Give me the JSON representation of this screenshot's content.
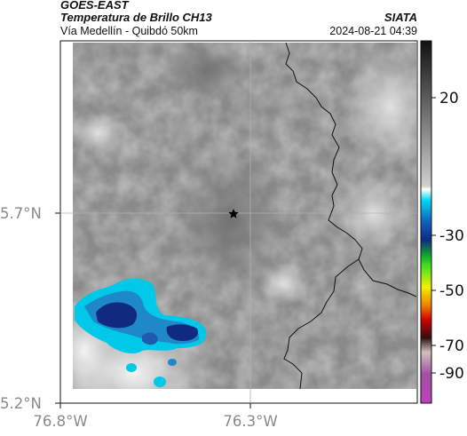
{
  "header": {
    "title_line1": "GOES-EAST",
    "title_line2": "Temperatura de Brillo CH13",
    "subtitle": "Vía Medellín - Quibdó 50km",
    "source": "SIATA",
    "datetime": "2024-08-21 04:39"
  },
  "map": {
    "marker": "star-marker",
    "lat_ticks": [
      {
        "value": 5.7,
        "label": "5.7°N"
      },
      {
        "value": 5.2,
        "label": "5.2°N"
      }
    ],
    "lon_ticks": [
      {
        "value": -76.8,
        "label": "76.8°W"
      },
      {
        "value": -76.3,
        "label": "76.3°W"
      }
    ]
  },
  "colorbar": {
    "ticks": [
      {
        "value": 20,
        "label": "20"
      },
      {
        "value": -30,
        "label": "-30"
      },
      {
        "value": -50,
        "label": "-50"
      },
      {
        "value": -70,
        "label": "-70"
      },
      {
        "value": -90,
        "label": "-90"
      }
    ]
  }
}
